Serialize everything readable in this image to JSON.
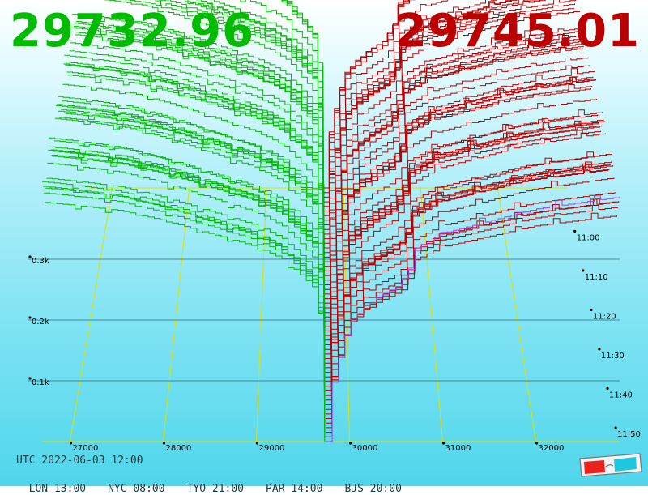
{
  "header": {
    "bid_price": "29732.96",
    "ask_price": "29745.01",
    "bid_color": "#00bb00",
    "ask_color": "#bb0000"
  },
  "footer": {
    "utc": "UTC 2022-06-03 12:00",
    "zones": [
      {
        "label": "LON 13:00"
      },
      {
        "label": "NYC 08:00"
      },
      {
        "label": "TYO 21:00"
      },
      {
        "label": "PAR 14:00"
      },
      {
        "label": "BJS 20:00"
      }
    ],
    "icon": "3d-glasses-icon"
  },
  "chart_data": {
    "type": "line",
    "title": "",
    "xlabel": "",
    "ylabel": "",
    "x_ticks": [
      "27000",
      "28000",
      "29000",
      "30000",
      "31000",
      "32000"
    ],
    "x_tick_values": [
      27000,
      28000,
      29000,
      30000,
      31000,
      32000
    ],
    "xlim": [
      26700,
      32900
    ],
    "z_ticks": [
      "0.1k",
      "0.2k",
      "0.3k"
    ],
    "z_tick_values": [
      100,
      200,
      300
    ],
    "zlim": [
      0,
      430
    ],
    "time_ticks": [
      "11:00",
      "11:10",
      "11:20",
      "11:30",
      "11:40",
      "11:50"
    ],
    "snapshot_count": 56,
    "colors": {
      "bid": "#00bb00",
      "ask": "#bb0000",
      "latest_ask": "#aa33ff",
      "grid": "#e0e000"
    },
    "series": [
      {
        "name": "bid",
        "side": "bid",
        "x": [
          26700,
          27000,
          27500,
          28000,
          28500,
          29000,
          29300,
          29600,
          29700,
          29733
        ],
        "values": [
          430,
          425,
          415,
          395,
          370,
          345,
          320,
          270,
          200,
          0
        ]
      },
      {
        "name": "ask",
        "side": "ask",
        "x": [
          29745,
          29760,
          29800,
          29900,
          30000,
          30300,
          30600,
          30700,
          31000,
          32000,
          32900
        ],
        "values": [
          0,
          40,
          90,
          150,
          200,
          240,
          265,
          320,
          345,
          385,
          405
        ]
      }
    ]
  }
}
